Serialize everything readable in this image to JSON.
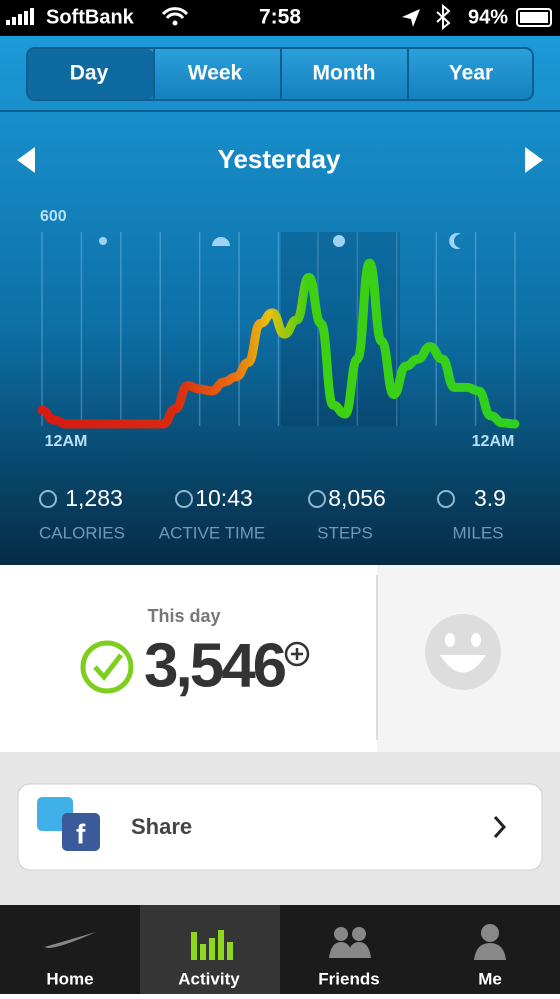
{
  "status_bar": {
    "carrier": "SoftBank",
    "time": "7:58",
    "battery": "94%"
  },
  "period_tabs": [
    "Day",
    "Week",
    "Month",
    "Year"
  ],
  "header": {
    "title": "Yesterday"
  },
  "activity_chart": {
    "type": "line",
    "ylim": [
      0,
      600
    ],
    "yticks": [
      600
    ],
    "x_start_label": "12AM",
    "x_end_label": "12AM",
    "values": [
      56,
      28,
      17,
      17,
      17,
      17,
      17,
      17,
      17,
      17,
      17,
      60,
      125,
      115,
      110,
      135,
      150,
      190,
      300,
      330,
      270,
      310,
      430,
      300,
      70,
      45,
      200,
      470,
      250,
      100,
      180,
      200,
      235,
      200,
      120,
      120,
      110,
      40,
      20,
      17
    ]
  },
  "stats": [
    {
      "value": "1,283",
      "label": "CALORIES"
    },
    {
      "value": "10:43",
      "label": "ACTIVE TIME"
    },
    {
      "value": "8,056",
      "label": "STEPS"
    },
    {
      "value": "3.9",
      "label": "MILES"
    }
  ],
  "fuel": {
    "caption": "This day",
    "value": "3,546"
  },
  "share": {
    "label": "Share"
  },
  "tab_bar": [
    "Home",
    "Activity",
    "Friends",
    "Me"
  ]
}
